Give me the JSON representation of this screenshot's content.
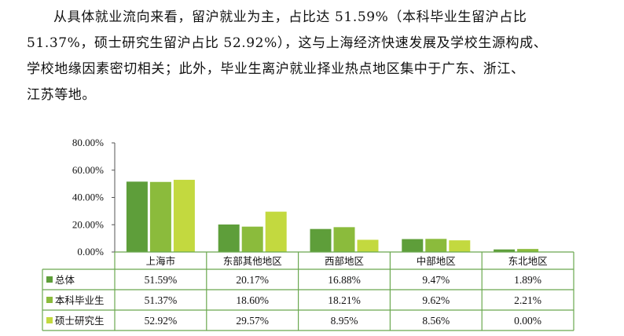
{
  "paragraph": {
    "line1": "从具体就业流向来看，留沪就业为主，占比达 51.59%（本科毕业生留沪占比",
    "line2": "51.37%，硕士研究生留沪占比 52.92%），这与上海经济快速发展及学校生源构成、",
    "line3": "学校地缘因素密切相关；此外，毕业生离沪就业择业热点地区集中于广东、浙江、",
    "line4": "江苏等地。"
  },
  "chart_data": {
    "type": "bar",
    "categories": [
      "上海市",
      "东部其他地区",
      "西部地区",
      "中部地区",
      "东北地区"
    ],
    "series": [
      {
        "name": "总体",
        "values": [
          51.59,
          20.17,
          16.88,
          9.47,
          1.89
        ],
        "color": "#5e9e3a",
        "labels": [
          "51.59%",
          "20.17%",
          "16.88%",
          "9.47%",
          "1.89%"
        ]
      },
      {
        "name": "本科毕业生",
        "values": [
          51.37,
          18.6,
          18.21,
          9.62,
          2.21
        ],
        "color": "#8bbb3c",
        "labels": [
          "51.37%",
          "18.60%",
          "18.21%",
          "9.62%",
          "2.21%"
        ]
      },
      {
        "name": "硕士研究生",
        "values": [
          52.92,
          29.57,
          8.95,
          8.56,
          0.0
        ],
        "color": "#c3d93f",
        "labels": [
          "52.92%",
          "29.57%",
          "8.95%",
          "8.56%",
          "0.00%"
        ]
      }
    ],
    "ylim": [
      0,
      80
    ],
    "yticks": [
      "0.00%",
      "20.00%",
      "40.00%",
      "60.00%",
      "80.00%"
    ],
    "legend": "data table below chart",
    "grid": false,
    "table_border_color": "#6aa84f"
  }
}
